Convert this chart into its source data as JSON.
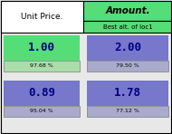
{
  "col1_header": "Unit Price.",
  "col2_header": "Amount.",
  "col2_subheader": "Best alt. of loc1",
  "cells": [
    {
      "row": 0,
      "col": 0,
      "value": "1.00",
      "pct": "97.68 %",
      "bg": "#55dd77",
      "pct_bg": "#aaddaa",
      "fg": "#000080"
    },
    {
      "row": 0,
      "col": 1,
      "value": "2.00",
      "pct": "79.50 %",
      "bg": "#7777cc",
      "pct_bg": "#aaaacc",
      "fg": "#000080"
    },
    {
      "row": 1,
      "col": 0,
      "value": "0.89",
      "pct": "95.04 %",
      "bg": "#7777cc",
      "pct_bg": "#aaaacc",
      "fg": "#000080"
    },
    {
      "row": 1,
      "col": 1,
      "value": "1.78",
      "pct": "77.12 %",
      "bg": "#7777cc",
      "pct_bg": "#aaaacc",
      "fg": "#000080"
    }
  ],
  "header1_bg": "#ffffff",
  "header2_bg": "#55dd77",
  "subheader_bg": "#55dd77",
  "outer_bg": "#e8e8e8",
  "border_color": "#000000",
  "value_fontsize": 9,
  "pct_fontsize": 4.5,
  "header_fontsize": 6.5,
  "subheader_fontsize": 5.0,
  "fig_w": 1.9,
  "fig_h": 1.48,
  "dpi": 100
}
